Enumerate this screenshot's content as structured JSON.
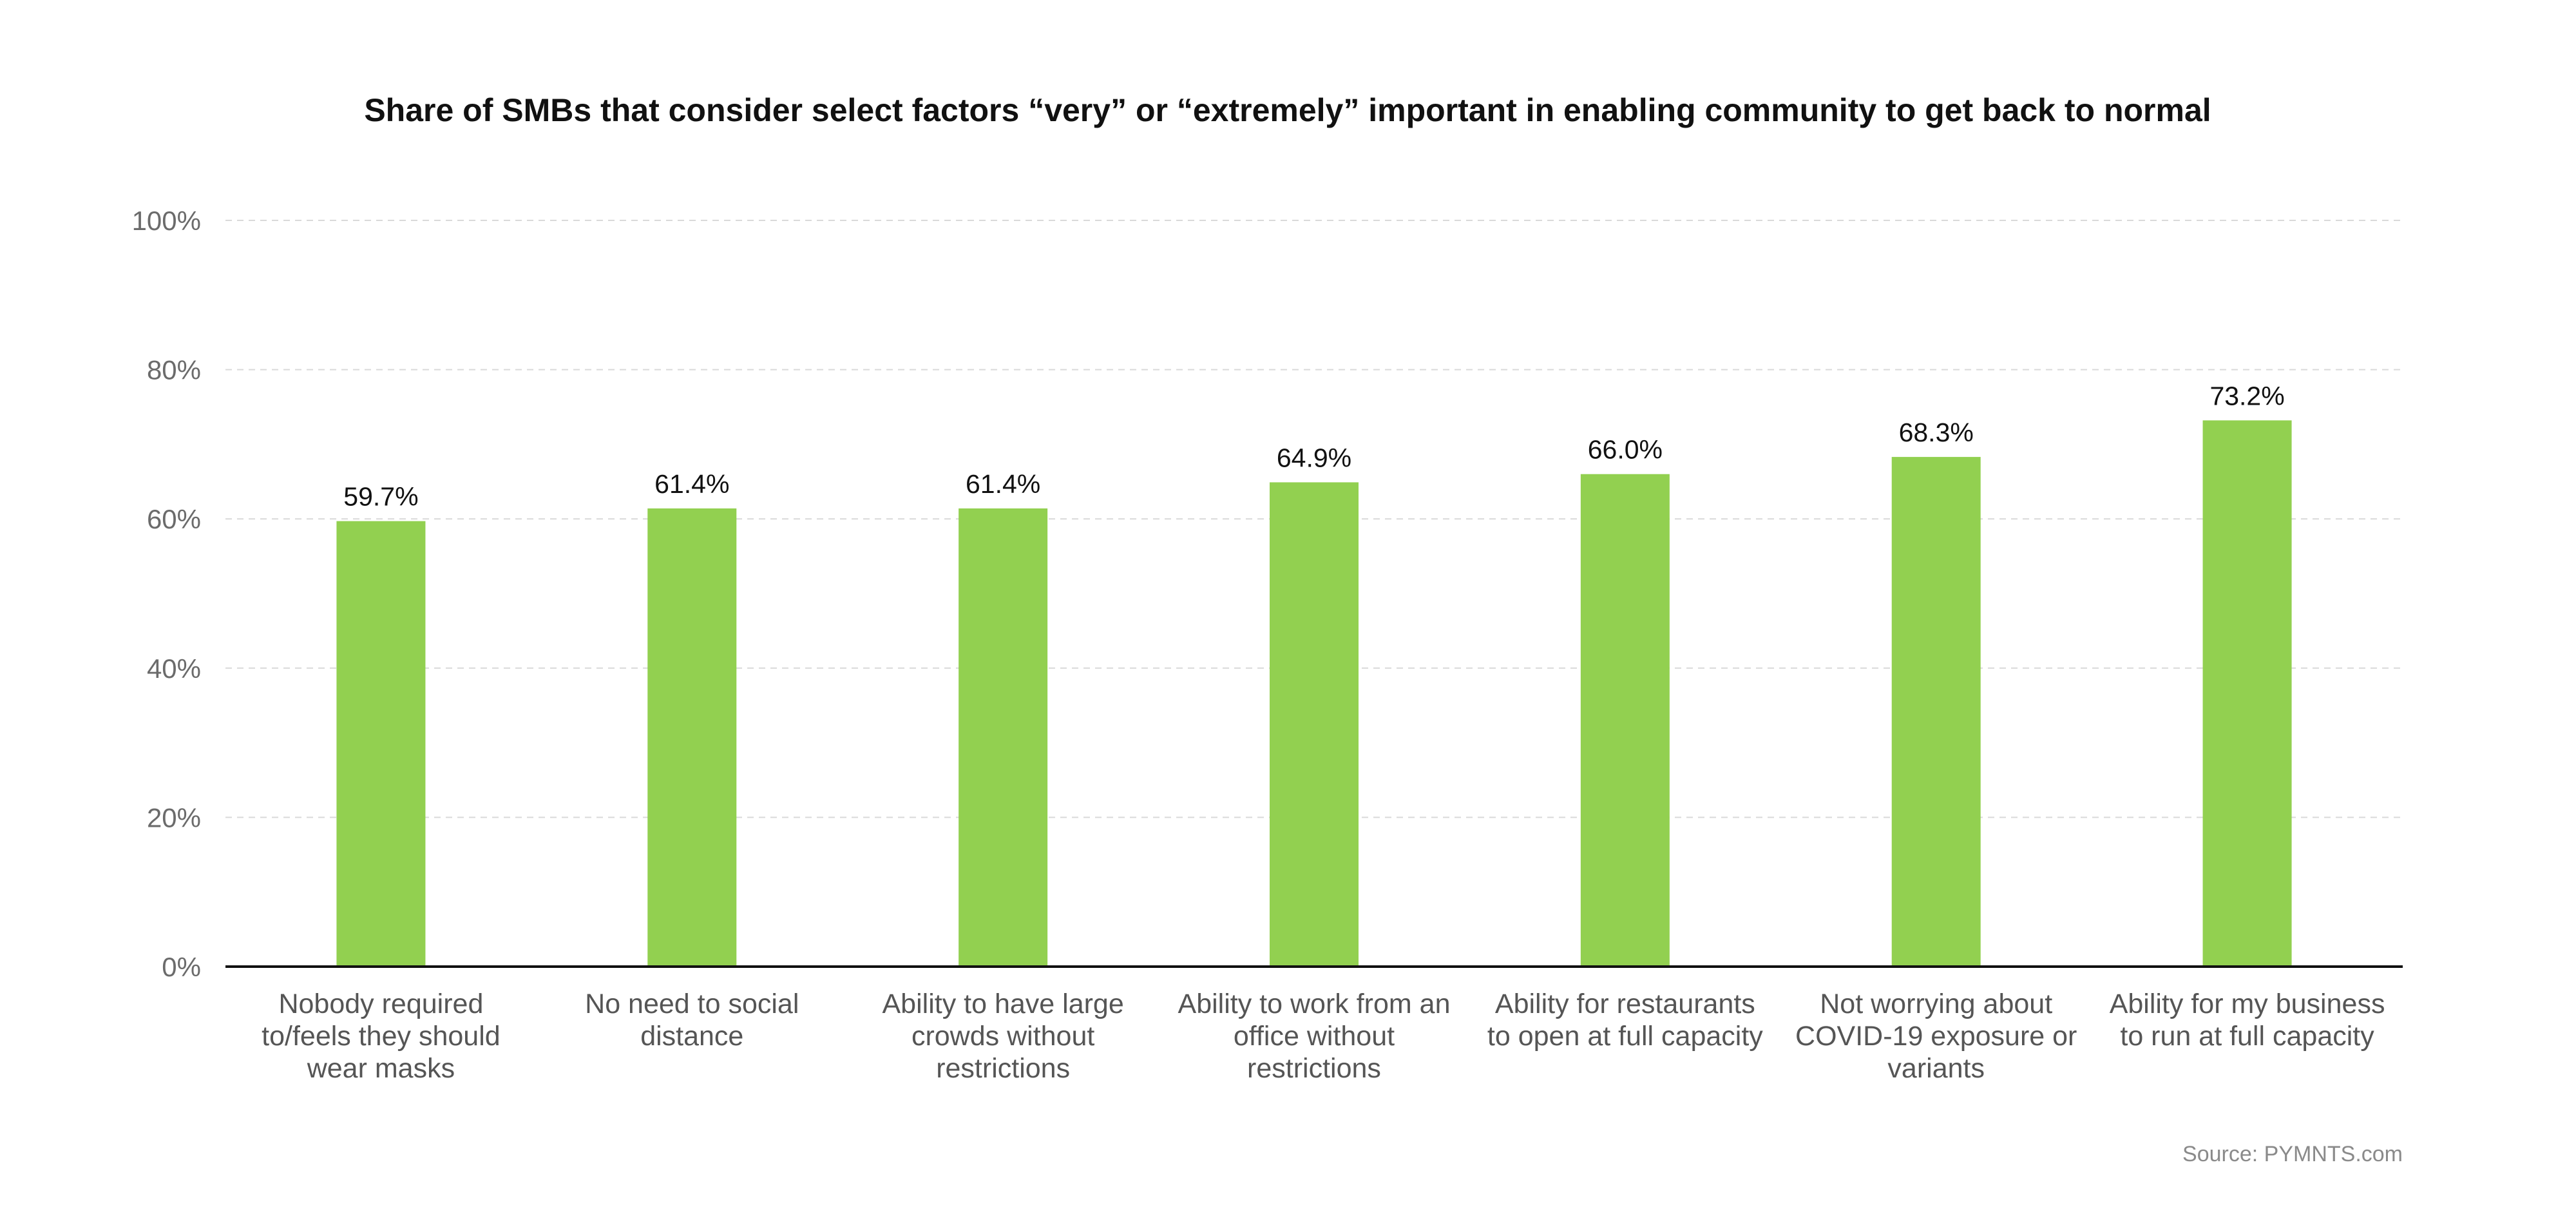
{
  "chart_data": {
    "type": "bar",
    "title": "Share of SMBs that consider select factors “very” or “extremely” important in enabling community to get back to normal",
    "xlabel": "",
    "ylabel": "",
    "ylim": [
      0,
      100
    ],
    "y_ticks": [
      "0%",
      "20%",
      "40%",
      "60%",
      "80%",
      "100%"
    ],
    "y_tick_values": [
      0,
      20,
      40,
      60,
      80,
      100
    ],
    "grid": true,
    "categories": [
      [
        "Nobody required",
        "to/feels they should",
        "wear masks"
      ],
      [
        "No need to social",
        "distance"
      ],
      [
        "Ability to have large",
        "crowds without",
        "restrictions"
      ],
      [
        "Ability to work from an",
        "office without",
        "restrictions"
      ],
      [
        "Ability for restaurants",
        "to open at full capacity"
      ],
      [
        "Not worrying about",
        "COVID-19 exposure or",
        "variants"
      ],
      [
        "Ability for my business",
        "to run at full capacity"
      ]
    ],
    "values": [
      59.7,
      61.4,
      61.4,
      64.9,
      66.0,
      68.3,
      73.2
    ],
    "value_labels": [
      "59.7%",
      "61.4%",
      "61.4%",
      "64.9%",
      "66.0%",
      "68.3%",
      "73.2%"
    ],
    "bar_color": "#92d050",
    "axis_color": "#111111",
    "grid_color": "#d9d9d9"
  },
  "source": "Source: PYMNTS.com"
}
